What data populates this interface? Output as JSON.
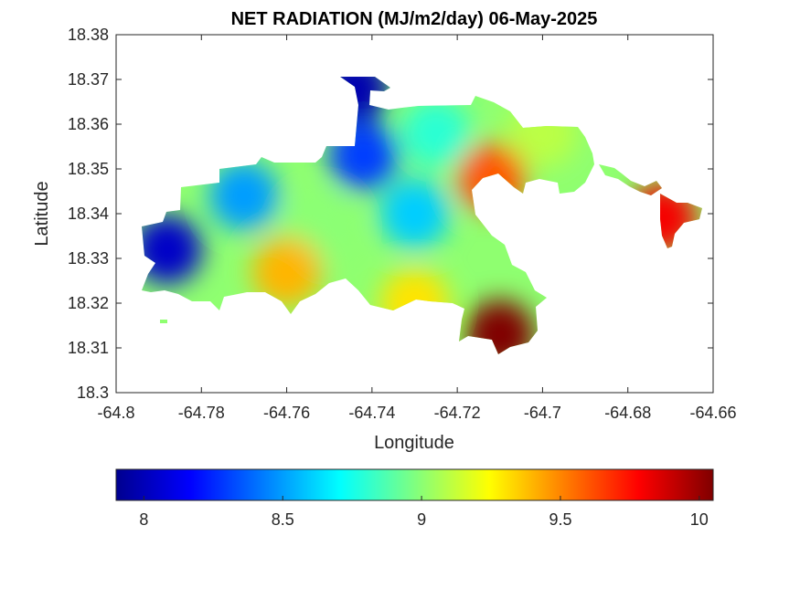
{
  "chart_data": {
    "type": "heatmap",
    "title": "NET RADIATION (MJ/m2/day) 06-May-2025",
    "xlabel": "Longitude",
    "ylabel": "Latitude",
    "xlim": [
      -64.8,
      -64.66
    ],
    "ylim": [
      18.3,
      18.38
    ],
    "x_ticks": [
      -64.8,
      -64.78,
      -64.76,
      -64.74,
      -64.72,
      -64.7,
      -64.68,
      -64.66
    ],
    "x_tick_labels": [
      "-64.8",
      "-64.78",
      "-64.76",
      "-64.74",
      "-64.72",
      "-64.7",
      "-64.68",
      "-64.66"
    ],
    "y_ticks": [
      18.3,
      18.31,
      18.32,
      18.33,
      18.34,
      18.35,
      18.36,
      18.37,
      18.38
    ],
    "y_tick_labels": [
      "18.3",
      "18.31",
      "18.32",
      "18.33",
      "18.34",
      "18.35",
      "18.36",
      "18.37",
      "18.38"
    ],
    "colormap": "jet",
    "colorbar": {
      "location": "southoutside",
      "range": [
        7.9,
        10.05
      ],
      "ticks": [
        8,
        8.5,
        9,
        9.5,
        10
      ],
      "tick_labels": [
        "8",
        "8.5",
        "9",
        "9.5",
        "10"
      ]
    },
    "grid": false,
    "regions": [
      {
        "lon": -64.744,
        "lat": 18.368,
        "value": 8.0
      },
      {
        "lon": -64.788,
        "lat": 18.332,
        "value": 8.05
      },
      {
        "lon": -64.742,
        "lat": 18.353,
        "value": 8.3
      },
      {
        "lon": -64.77,
        "lat": 18.344,
        "value": 8.5
      },
      {
        "lon": -64.725,
        "lat": 18.358,
        "value": 8.8
      },
      {
        "lon": -64.73,
        "lat": 18.34,
        "value": 8.6
      },
      {
        "lon": -64.752,
        "lat": 18.337,
        "value": 9.0
      },
      {
        "lon": -64.76,
        "lat": 18.327,
        "value": 9.4
      },
      {
        "lon": -64.73,
        "lat": 18.32,
        "value": 9.3
      },
      {
        "lon": -64.712,
        "lat": 18.348,
        "value": 9.6
      },
      {
        "lon": -64.7,
        "lat": 18.358,
        "value": 9.1
      },
      {
        "lon": -64.672,
        "lat": 18.339,
        "value": 9.8
      },
      {
        "lon": -64.71,
        "lat": 18.313,
        "value": 10.05
      }
    ]
  }
}
